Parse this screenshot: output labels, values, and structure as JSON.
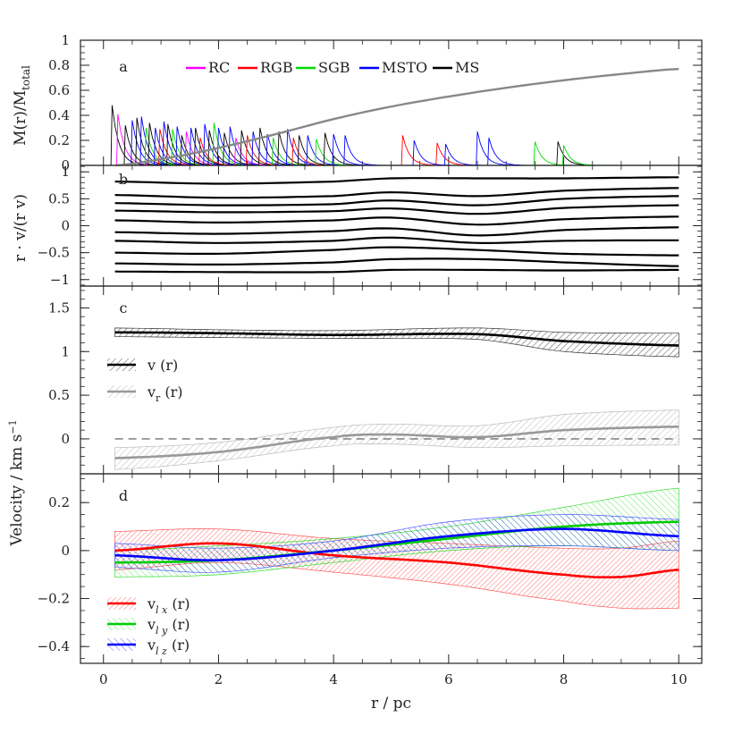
{
  "chart_data": [
    {
      "panel": "a",
      "type": "line",
      "ylabel": "M(r)/M_total",
      "ylim": [
        0,
        1
      ],
      "yticks": [
        "0",
        "0.2",
        "0.4",
        "0.6",
        "0.8",
        "1"
      ],
      "xlim": [
        -0.4,
        10.4
      ],
      "legend_placement": "top",
      "legend": [
        {
          "name": "RC",
          "color": "#ff00ff"
        },
        {
          "name": "RGB",
          "color": "#ff0000"
        },
        {
          "name": "SGB",
          "color": "#00dd00"
        },
        {
          "name": "MSTO",
          "color": "#0000ff"
        },
        {
          "name": "MS",
          "color": "#000000"
        }
      ],
      "cumulative_mass": {
        "color": "#888888",
        "x": [
          0.2,
          1,
          2,
          3,
          4,
          5,
          6,
          7,
          8,
          9,
          10
        ],
        "y": [
          0.0,
          0.05,
          0.14,
          0.25,
          0.37,
          0.47,
          0.55,
          0.62,
          0.68,
          0.73,
          0.77
        ]
      },
      "spikes": [
        {
          "class": "MS",
          "x": 0.15,
          "peak": 0.48
        },
        {
          "class": "RC",
          "x": 0.25,
          "peak": 0.41
        },
        {
          "class": "MS",
          "x": 0.38,
          "peak": 0.32
        },
        {
          "class": "MSTO",
          "x": 0.5,
          "peak": 0.36
        },
        {
          "class": "MS",
          "x": 0.58,
          "peak": 0.38
        },
        {
          "class": "MSTO",
          "x": 0.66,
          "peak": 0.39
        },
        {
          "class": "SGB",
          "x": 0.74,
          "peak": 0.3
        },
        {
          "class": "MS",
          "x": 0.8,
          "peak": 0.34
        },
        {
          "class": "MSTO",
          "x": 0.9,
          "peak": 0.3
        },
        {
          "class": "RGB",
          "x": 0.98,
          "peak": 0.29
        },
        {
          "class": "MSTO",
          "x": 1.05,
          "peak": 0.35
        },
        {
          "class": "MS",
          "x": 1.12,
          "peak": 0.33
        },
        {
          "class": "SGB",
          "x": 1.2,
          "peak": 0.29
        },
        {
          "class": "MSTO",
          "x": 1.28,
          "peak": 0.31
        },
        {
          "class": "MS",
          "x": 1.36,
          "peak": 0.24
        },
        {
          "class": "RC",
          "x": 1.44,
          "peak": 0.27
        },
        {
          "class": "MSTO",
          "x": 1.52,
          "peak": 0.3
        },
        {
          "class": "MS",
          "x": 1.6,
          "peak": 0.3
        },
        {
          "class": "RGB",
          "x": 1.68,
          "peak": 0.22
        },
        {
          "class": "MSTO",
          "x": 1.76,
          "peak": 0.33
        },
        {
          "class": "MS",
          "x": 1.84,
          "peak": 0.28
        },
        {
          "class": "SGB",
          "x": 1.92,
          "peak": 0.34
        },
        {
          "class": "MSTO",
          "x": 2.0,
          "peak": 0.3
        },
        {
          "class": "MS",
          "x": 2.1,
          "peak": 0.26
        },
        {
          "class": "MSTO",
          "x": 2.2,
          "peak": 0.31
        },
        {
          "class": "RC",
          "x": 2.3,
          "peak": 0.22
        },
        {
          "class": "MS",
          "x": 2.4,
          "peak": 0.28
        },
        {
          "class": "RGB",
          "x": 2.5,
          "peak": 0.24
        },
        {
          "class": "MSTO",
          "x": 2.6,
          "peak": 0.27
        },
        {
          "class": "MS",
          "x": 2.72,
          "peak": 0.3
        },
        {
          "class": "MSTO",
          "x": 2.85,
          "peak": 0.25
        },
        {
          "class": "SGB",
          "x": 2.95,
          "peak": 0.22
        },
        {
          "class": "MS",
          "x": 3.05,
          "peak": 0.27
        },
        {
          "class": "MSTO",
          "x": 3.2,
          "peak": 0.29
        },
        {
          "class": "RGB",
          "x": 3.3,
          "peak": 0.22
        },
        {
          "class": "MS",
          "x": 3.4,
          "peak": 0.24
        },
        {
          "class": "MSTO",
          "x": 3.55,
          "peak": 0.24
        },
        {
          "class": "SGB",
          "x": 3.7,
          "peak": 0.21
        },
        {
          "class": "MS",
          "x": 3.85,
          "peak": 0.26
        },
        {
          "class": "MSTO",
          "x": 4.0,
          "peak": 0.25
        },
        {
          "class": "MSTO",
          "x": 4.2,
          "peak": 0.24
        },
        {
          "class": "RGB",
          "x": 5.2,
          "peak": 0.24
        },
        {
          "class": "MSTO",
          "x": 5.4,
          "peak": 0.2
        },
        {
          "class": "RGB",
          "x": 5.8,
          "peak": 0.18
        },
        {
          "class": "MSTO",
          "x": 5.95,
          "peak": 0.17
        },
        {
          "class": "MSTO",
          "x": 6.5,
          "peak": 0.27
        },
        {
          "class": "MSTO",
          "x": 6.7,
          "peak": 0.22
        },
        {
          "class": "SGB",
          "x": 7.5,
          "peak": 0.19
        },
        {
          "class": "MS",
          "x": 7.9,
          "peak": 0.19
        },
        {
          "class": "SGB",
          "x": 8.0,
          "peak": 0.16
        }
      ]
    },
    {
      "panel": "b",
      "type": "line",
      "ylabel": "r · v/(r v)",
      "ylim": [
        -1.12,
        1.12
      ],
      "yticks": [
        "−1",
        "−0.5",
        "0",
        "0.5",
        "1"
      ],
      "xlim": [
        -0.4,
        10.4
      ],
      "series": [
        {
          "x": [
            0.2,
            2,
            4,
            5,
            6.5,
            8,
            10
          ],
          "y": [
            0.82,
            0.78,
            0.82,
            0.88,
            0.88,
            0.88,
            0.9
          ]
        },
        {
          "x": [
            0.2,
            2,
            4,
            5,
            6.5,
            8,
            10
          ],
          "y": [
            0.57,
            0.52,
            0.55,
            0.62,
            0.55,
            0.65,
            0.7
          ]
        },
        {
          "x": [
            0.2,
            2,
            4,
            5,
            6.5,
            8,
            10
          ],
          "y": [
            0.42,
            0.38,
            0.4,
            0.47,
            0.38,
            0.5,
            0.55
          ]
        },
        {
          "x": [
            0.2,
            2,
            4,
            5,
            6.5,
            8,
            10
          ],
          "y": [
            0.28,
            0.25,
            0.27,
            0.32,
            0.22,
            0.33,
            0.38
          ]
        },
        {
          "x": [
            0.2,
            2,
            4,
            5,
            6.5,
            8,
            10
          ],
          "y": [
            0.1,
            0.06,
            0.1,
            0.15,
            0.02,
            0.12,
            0.17
          ]
        },
        {
          "x": [
            0.2,
            2,
            4,
            5,
            6.5,
            8,
            10
          ],
          "y": [
            -0.12,
            -0.15,
            -0.1,
            -0.05,
            -0.18,
            -0.08,
            -0.03
          ]
        },
        {
          "x": [
            0.2,
            2,
            4,
            5,
            6.5,
            8,
            10
          ],
          "y": [
            -0.28,
            -0.32,
            -0.28,
            -0.22,
            -0.32,
            -0.28,
            -0.27
          ]
        },
        {
          "x": [
            0.2,
            2,
            4,
            5,
            6.5,
            8,
            10
          ],
          "y": [
            -0.5,
            -0.52,
            -0.45,
            -0.4,
            -0.45,
            -0.52,
            -0.55
          ]
        },
        {
          "x": [
            0.2,
            2,
            4,
            5,
            6.5,
            8,
            10
          ],
          "y": [
            -0.7,
            -0.72,
            -0.68,
            -0.62,
            -0.62,
            -0.68,
            -0.75
          ]
        },
        {
          "x": [
            0.2,
            2,
            4,
            5,
            6.5,
            8,
            10
          ],
          "y": [
            -0.85,
            -0.86,
            -0.86,
            -0.82,
            -0.82,
            -0.83,
            -0.82
          ]
        }
      ]
    },
    {
      "panel": "c",
      "type": "area",
      "ylim": [
        -0.4,
        1.75
      ],
      "yticks": [
        "0",
        "0.5",
        "1",
        "1.5"
      ],
      "xlim": [
        -0.4,
        10.4
      ],
      "reference_line": {
        "y": 0,
        "style": "dashed"
      },
      "series": [
        {
          "name": "v (r)",
          "color": "#000000",
          "x": [
            0.2,
            2,
            4,
            6.5,
            8,
            10
          ],
          "y": [
            1.22,
            1.21,
            1.19,
            1.2,
            1.12,
            1.07
          ],
          "lower": [
            1.17,
            1.16,
            1.15,
            1.14,
            1.0,
            0.94
          ],
          "upper": [
            1.27,
            1.25,
            1.24,
            1.27,
            1.22,
            1.21
          ]
        },
        {
          "name": "v_r (r)",
          "color": "#999999",
          "x": [
            0.2,
            2,
            4,
            5,
            6.5,
            8,
            10
          ],
          "y": [
            -0.22,
            -0.15,
            0.02,
            0.05,
            0.02,
            0.1,
            0.14
          ],
          "lower": [
            -0.35,
            -0.25,
            -0.08,
            -0.06,
            -0.1,
            -0.08,
            -0.07
          ],
          "upper": [
            -0.1,
            -0.04,
            0.13,
            0.17,
            0.15,
            0.28,
            0.33
          ]
        }
      ]
    },
    {
      "panel": "d",
      "type": "area",
      "ylim": [
        -0.47,
        0.32
      ],
      "yticks": [
        "−0.4",
        "−0.2",
        "0",
        "0.2"
      ],
      "xticks": [
        "0",
        "2",
        "4",
        "6",
        "8",
        "10"
      ],
      "xlim": [
        -0.4,
        10.4
      ],
      "xlabel": "r / pc",
      "series": [
        {
          "name": "v_lx (r)",
          "color": "#ff0000",
          "x": [
            0.2,
            2,
            4,
            6,
            8,
            9,
            10
          ],
          "y": [
            0.0,
            0.03,
            -0.02,
            -0.05,
            -0.1,
            -0.11,
            -0.08
          ],
          "lower": [
            -0.08,
            -0.05,
            -0.09,
            -0.14,
            -0.21,
            -0.24,
            -0.24
          ],
          "upper": [
            0.08,
            0.09,
            0.05,
            0.03,
            0.01,
            0.01,
            0.04
          ]
        },
        {
          "name": "v_ly (r)",
          "color": "#00cc00",
          "x": [
            0.2,
            2,
            4,
            6,
            8,
            10
          ],
          "y": [
            -0.05,
            -0.04,
            0.0,
            0.05,
            0.1,
            0.12
          ],
          "lower": [
            -0.11,
            -0.1,
            -0.05,
            0.0,
            0.02,
            0.0
          ],
          "upper": [
            0.0,
            0.02,
            0.05,
            0.1,
            0.18,
            0.26
          ]
        },
        {
          "name": "v_lz (r)",
          "color": "#0000ff",
          "x": [
            0.2,
            2,
            4,
            6,
            8,
            10
          ],
          "y": [
            -0.02,
            -0.04,
            0.0,
            0.06,
            0.09,
            0.06
          ],
          "lower": [
            -0.07,
            -0.09,
            -0.03,
            0.01,
            0.02,
            0.0
          ],
          "upper": [
            0.03,
            0.01,
            0.04,
            0.12,
            0.15,
            0.13
          ]
        }
      ]
    }
  ],
  "panel_labels": {
    "a": "a",
    "b": "b",
    "c": "c",
    "d": "d"
  },
  "ylabel_c": "M(r)/M",
  "shared_ylabel": "Velocity / km s",
  "shared_ylabel_sup": "−1",
  "ylabel_a_main": "M(r)/M",
  "ylabel_a_sub": "total",
  "ylabel_b": "r · v/(r v)",
  "xlabel": "r / pc",
  "legend_c": [
    {
      "prefix": "v",
      "sub": "",
      "suffix": " (r)"
    },
    {
      "prefix": "v",
      "sub": "r",
      "suffix": " (r)"
    }
  ],
  "legend_d": [
    {
      "prefix": "v",
      "sub": "l x",
      "suffix": " (r)"
    },
    {
      "prefix": "v",
      "sub": "l y",
      "suffix": " (r)"
    },
    {
      "prefix": "v",
      "sub": "l z",
      "suffix": " (r)"
    }
  ]
}
